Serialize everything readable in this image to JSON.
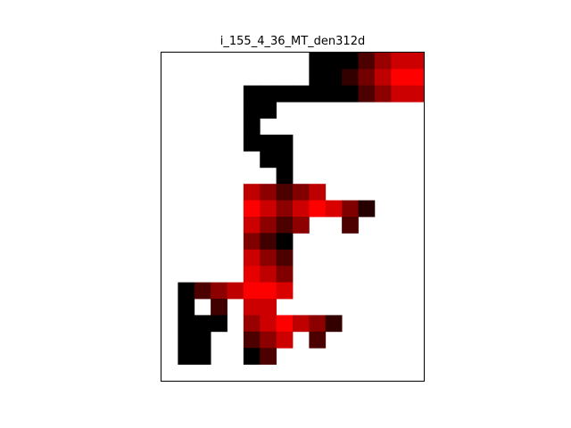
{
  "chart_data": {
    "type": "heatmap",
    "title": "i_155_4_36_MT_den312d",
    "axes_visible": false,
    "grid": false,
    "legend": "none",
    "columns": 16,
    "rows": 20,
    "colormap": "black-to-red (0 = black, 1 = pure red); empty cells are white",
    "cells": [
      [
        9,
        0,
        0
      ],
      [
        10,
        0,
        0
      ],
      [
        11,
        0,
        0
      ],
      [
        12,
        0,
        0.3
      ],
      [
        13,
        0,
        0.6
      ],
      [
        14,
        0,
        0.8
      ],
      [
        15,
        0,
        0.8
      ],
      [
        9,
        1,
        0
      ],
      [
        10,
        1,
        0
      ],
      [
        11,
        1,
        0.2
      ],
      [
        12,
        1,
        0.45
      ],
      [
        13,
        1,
        0.75
      ],
      [
        14,
        1,
        1
      ],
      [
        15,
        1,
        1
      ],
      [
        5,
        2,
        0
      ],
      [
        6,
        2,
        0
      ],
      [
        7,
        2,
        0
      ],
      [
        8,
        2,
        0
      ],
      [
        9,
        2,
        0
      ],
      [
        10,
        2,
        0
      ],
      [
        11,
        2,
        0
      ],
      [
        12,
        2,
        0.3
      ],
      [
        13,
        2,
        0.55
      ],
      [
        14,
        2,
        0.8
      ],
      [
        15,
        2,
        0.8
      ],
      [
        5,
        3,
        0
      ],
      [
        6,
        3,
        0
      ],
      [
        5,
        4,
        0
      ],
      [
        5,
        5,
        0
      ],
      [
        6,
        5,
        0
      ],
      [
        7,
        5,
        0
      ],
      [
        6,
        6,
        0
      ],
      [
        7,
        6,
        0
      ],
      [
        7,
        7,
        0
      ],
      [
        5,
        8,
        0.75
      ],
      [
        6,
        8,
        0.55
      ],
      [
        7,
        8,
        0.3
      ],
      [
        8,
        8,
        0.5
      ],
      [
        9,
        8,
        0.75
      ],
      [
        5,
        9,
        1
      ],
      [
        6,
        9,
        0.8
      ],
      [
        7,
        9,
        0.55
      ],
      [
        8,
        9,
        0.8
      ],
      [
        9,
        9,
        1
      ],
      [
        10,
        9,
        0.85
      ],
      [
        11,
        9,
        0.5
      ],
      [
        12,
        9,
        0.15
      ],
      [
        5,
        10,
        0.8
      ],
      [
        6,
        10,
        0.55
      ],
      [
        7,
        10,
        0.3
      ],
      [
        8,
        10,
        0.55
      ],
      [
        11,
        10,
        0.3
      ],
      [
        5,
        11,
        0.5
      ],
      [
        6,
        11,
        0.25
      ],
      [
        7,
        11,
        0
      ],
      [
        5,
        12,
        0.8
      ],
      [
        6,
        12,
        0.55
      ],
      [
        7,
        12,
        0.3
      ],
      [
        5,
        13,
        0.9
      ],
      [
        6,
        13,
        0.75
      ],
      [
        7,
        13,
        0.5
      ],
      [
        1,
        14,
        0
      ],
      [
        2,
        14,
        0.3
      ],
      [
        3,
        14,
        0.55
      ],
      [
        4,
        14,
        0.75
      ],
      [
        5,
        14,
        1
      ],
      [
        6,
        14,
        1
      ],
      [
        7,
        14,
        0.85
      ],
      [
        1,
        15,
        0
      ],
      [
        3,
        15,
        0.25
      ],
      [
        5,
        15,
        0.8
      ],
      [
        6,
        15,
        0.8
      ],
      [
        1,
        16,
        0
      ],
      [
        2,
        16,
        0
      ],
      [
        3,
        16,
        0
      ],
      [
        5,
        16,
        0.6
      ],
      [
        6,
        16,
        0.8
      ],
      [
        7,
        16,
        1
      ],
      [
        8,
        16,
        0.75
      ],
      [
        9,
        16,
        0.55
      ],
      [
        10,
        16,
        0.2
      ],
      [
        1,
        17,
        0
      ],
      [
        2,
        17,
        0
      ],
      [
        5,
        17,
        0.3
      ],
      [
        6,
        17,
        0.55
      ],
      [
        7,
        17,
        0.8
      ],
      [
        9,
        17,
        0.3
      ],
      [
        1,
        18,
        0
      ],
      [
        2,
        18,
        0
      ],
      [
        5,
        18,
        0
      ],
      [
        6,
        18,
        0.3
      ]
    ]
  }
}
